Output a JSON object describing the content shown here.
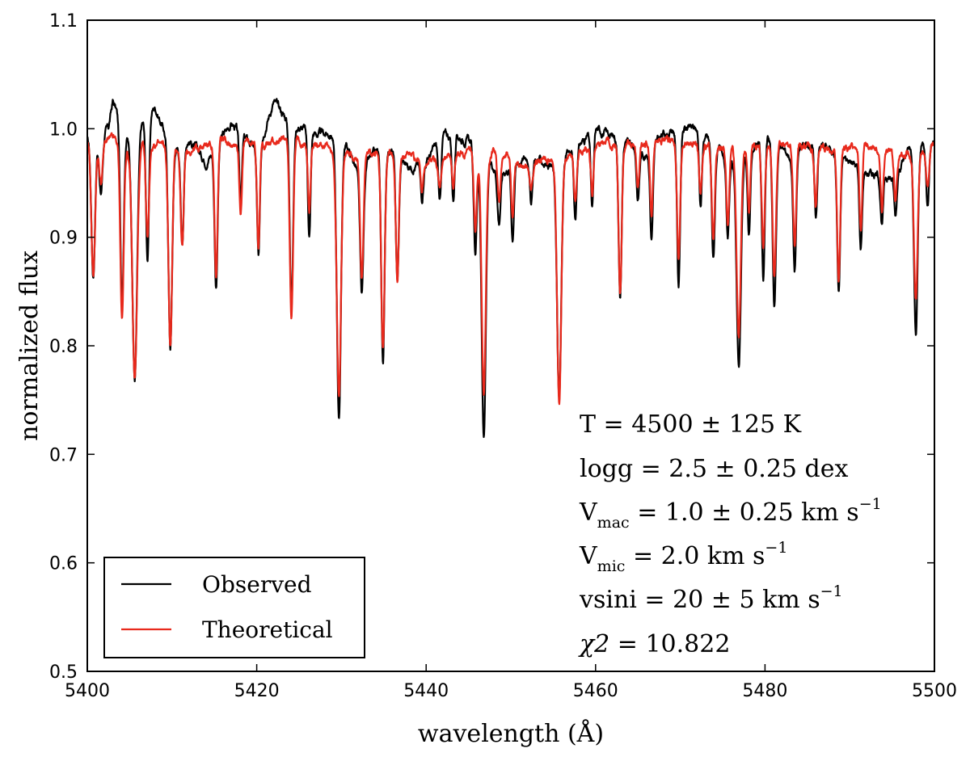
{
  "chart_data": {
    "type": "line",
    "title": "",
    "xlabel": "wavelength (Å)",
    "ylabel": "normalized flux",
    "xlim": [
      5400,
      5500
    ],
    "ylim": [
      0.5,
      1.1
    ],
    "xticks": [
      "5400",
      "5420",
      "5440",
      "5460",
      "5480",
      "5500"
    ],
    "yticks": [
      "0.5",
      "0.6",
      "0.7",
      "0.8",
      "0.9",
      "1.0",
      "1.1"
    ],
    "grid": false,
    "legend_position": "lower-left",
    "series": [
      {
        "name": "Observed",
        "color": "#000000",
        "continuum": [
          [
            5400,
            0.99
          ],
          [
            5402.5,
            1.0
          ],
          [
            5403,
            1.025
          ],
          [
            5405,
            0.99
          ],
          [
            5408,
            1.02
          ],
          [
            5410,
            0.98
          ],
          [
            5412,
            0.99
          ],
          [
            5414,
            0.97
          ],
          [
            5417,
            1.005
          ],
          [
            5420,
            0.98
          ],
          [
            5422,
            1.025
          ],
          [
            5424,
            1.005
          ],
          [
            5427,
            0.995
          ],
          [
            5430,
            0.995
          ],
          [
            5432,
            0.96
          ],
          [
            5435,
            0.985
          ],
          [
            5438,
            0.965
          ],
          [
            5440,
            0.97
          ],
          [
            5442,
            0.995
          ],
          [
            5445,
            0.99
          ],
          [
            5447,
            0.97
          ],
          [
            5449,
            0.96
          ],
          [
            5452,
            0.975
          ],
          [
            5455,
            0.965
          ],
          [
            5458,
            0.985
          ],
          [
            5460,
            1.0
          ],
          [
            5463,
            0.99
          ],
          [
            5466,
            0.975
          ],
          [
            5468,
            0.995
          ],
          [
            5470,
            1.0
          ],
          [
            5472,
            1.0
          ],
          [
            5474,
            0.985
          ],
          [
            5476,
            0.965
          ],
          [
            5478,
            0.975
          ],
          [
            5480,
            0.995
          ],
          [
            5483,
            0.975
          ],
          [
            5485,
            0.985
          ],
          [
            5487,
            0.985
          ],
          [
            5489,
            0.975
          ],
          [
            5492,
            0.96
          ],
          [
            5495,
            0.955
          ],
          [
            5497,
            0.98
          ],
          [
            5500,
            0.99
          ]
        ],
        "lines": [
          [
            5400.7,
            0.865,
            0.22
          ],
          [
            5401.6,
            0.94,
            0.2
          ],
          [
            5404.1,
            0.84,
            0.2
          ],
          [
            5405.6,
            0.77,
            0.28
          ],
          [
            5407.1,
            0.88,
            0.18
          ],
          [
            5409.8,
            0.8,
            0.22
          ],
          [
            5411.2,
            0.895,
            0.18
          ],
          [
            5415.2,
            0.855,
            0.18
          ],
          [
            5418.1,
            0.935,
            0.16
          ],
          [
            5420.2,
            0.88,
            0.16
          ],
          [
            5424.1,
            0.84,
            0.2
          ],
          [
            5426.2,
            0.9,
            0.16
          ],
          [
            5429.7,
            0.735,
            0.25
          ],
          [
            5432.4,
            0.845,
            0.2
          ],
          [
            5434.9,
            0.785,
            0.2
          ],
          [
            5436.6,
            0.86,
            0.18
          ],
          [
            5439.5,
            0.935,
            0.16
          ],
          [
            5441.6,
            0.93,
            0.16
          ],
          [
            5443.2,
            0.935,
            0.16
          ],
          [
            5445.8,
            0.885,
            0.18
          ],
          [
            5446.8,
            0.715,
            0.25
          ],
          [
            5448.6,
            0.915,
            0.18
          ],
          [
            5450.2,
            0.9,
            0.16
          ],
          [
            5452.4,
            0.93,
            0.16
          ],
          [
            5455.7,
            0.75,
            0.25
          ],
          [
            5457.6,
            0.915,
            0.16
          ],
          [
            5459.6,
            0.925,
            0.16
          ],
          [
            5462.9,
            0.845,
            0.18
          ],
          [
            5465.0,
            0.935,
            0.16
          ],
          [
            5466.6,
            0.9,
            0.16
          ],
          [
            5469.8,
            0.855,
            0.18
          ],
          [
            5472.4,
            0.93,
            0.16
          ],
          [
            5473.9,
            0.88,
            0.18
          ],
          [
            5475.6,
            0.895,
            0.16
          ],
          [
            5476.9,
            0.78,
            0.25
          ],
          [
            5478.1,
            0.9,
            0.16
          ],
          [
            5479.8,
            0.86,
            0.18
          ],
          [
            5481.1,
            0.835,
            0.2
          ],
          [
            5483.5,
            0.87,
            0.18
          ],
          [
            5486.0,
            0.92,
            0.16
          ],
          [
            5488.7,
            0.85,
            0.18
          ],
          [
            5491.3,
            0.89,
            0.16
          ],
          [
            5493.8,
            0.91,
            0.16
          ],
          [
            5495.4,
            0.92,
            0.16
          ],
          [
            5497.8,
            0.81,
            0.22
          ],
          [
            5499.2,
            0.93,
            0.16
          ]
        ]
      },
      {
        "name": "Theoretical",
        "color": "#e8291c",
        "continuum": [
          [
            5400,
            0.985
          ],
          [
            5403,
            0.99
          ],
          [
            5405,
            0.98
          ],
          [
            5408,
            0.985
          ],
          [
            5412,
            0.98
          ],
          [
            5416,
            0.99
          ],
          [
            5420,
            0.985
          ],
          [
            5424,
            0.99
          ],
          [
            5428,
            0.985
          ],
          [
            5432,
            0.975
          ],
          [
            5436,
            0.98
          ],
          [
            5440,
            0.97
          ],
          [
            5444,
            0.975
          ],
          [
            5448,
            0.98
          ],
          [
            5452,
            0.965
          ],
          [
            5456,
            0.975
          ],
          [
            5460,
            0.985
          ],
          [
            5464,
            0.985
          ],
          [
            5468,
            0.99
          ],
          [
            5472,
            0.985
          ],
          [
            5476,
            0.98
          ],
          [
            5480,
            0.985
          ],
          [
            5484,
            0.985
          ],
          [
            5488,
            0.98
          ],
          [
            5492,
            0.985
          ],
          [
            5496,
            0.975
          ],
          [
            5500,
            0.985
          ]
        ],
        "lines": [
          [
            5400.7,
            0.865,
            0.22
          ],
          [
            5401.6,
            0.95,
            0.2
          ],
          [
            5404.1,
            0.825,
            0.2
          ],
          [
            5405.6,
            0.77,
            0.28
          ],
          [
            5407.1,
            0.9,
            0.18
          ],
          [
            5409.8,
            0.8,
            0.22
          ],
          [
            5411.2,
            0.89,
            0.18
          ],
          [
            5415.2,
            0.86,
            0.18
          ],
          [
            5418.1,
            0.925,
            0.16
          ],
          [
            5420.2,
            0.895,
            0.16
          ],
          [
            5424.1,
            0.83,
            0.2
          ],
          [
            5426.2,
            0.925,
            0.16
          ],
          [
            5429.7,
            0.75,
            0.25
          ],
          [
            5432.4,
            0.86,
            0.2
          ],
          [
            5434.9,
            0.795,
            0.2
          ],
          [
            5436.6,
            0.865,
            0.18
          ],
          [
            5439.5,
            0.945,
            0.16
          ],
          [
            5441.6,
            0.945,
            0.16
          ],
          [
            5443.2,
            0.945,
            0.16
          ],
          [
            5445.8,
            0.9,
            0.18
          ],
          [
            5446.8,
            0.755,
            0.25
          ],
          [
            5448.6,
            0.93,
            0.18
          ],
          [
            5450.2,
            0.92,
            0.16
          ],
          [
            5452.4,
            0.945,
            0.16
          ],
          [
            5455.7,
            0.748,
            0.25
          ],
          [
            5457.6,
            0.935,
            0.16
          ],
          [
            5459.6,
            0.94,
            0.16
          ],
          [
            5462.9,
            0.845,
            0.18
          ],
          [
            5465.0,
            0.945,
            0.16
          ],
          [
            5466.6,
            0.92,
            0.16
          ],
          [
            5469.8,
            0.875,
            0.18
          ],
          [
            5472.4,
            0.945,
            0.16
          ],
          [
            5473.9,
            0.9,
            0.18
          ],
          [
            5475.6,
            0.91,
            0.16
          ],
          [
            5476.9,
            0.81,
            0.25
          ],
          [
            5478.1,
            0.92,
            0.16
          ],
          [
            5479.8,
            0.89,
            0.18
          ],
          [
            5481.1,
            0.86,
            0.2
          ],
          [
            5483.5,
            0.89,
            0.18
          ],
          [
            5486.0,
            0.93,
            0.16
          ],
          [
            5488.7,
            0.86,
            0.18
          ],
          [
            5491.3,
            0.905,
            0.16
          ],
          [
            5493.8,
            0.925,
            0.16
          ],
          [
            5495.4,
            0.935,
            0.16
          ],
          [
            5497.8,
            0.84,
            0.22
          ],
          [
            5499.2,
            0.95,
            0.16
          ]
        ]
      }
    ],
    "annotations": {
      "teff": {
        "base": "T",
        "text": " = 4500 ± 125 K"
      },
      "logg": {
        "base": "logg",
        "text": " = 2.5 ± 0.25 dex"
      },
      "vmac": {
        "base": "V",
        "sub": "mac",
        "text": " = 1.0 ± 0.25 km s",
        "sup": "−1"
      },
      "vmic": {
        "base": "V",
        "sub": "mic",
        "text": " = 2.0 km s",
        "sup": "−1"
      },
      "vsini": {
        "base": "vsini",
        "text": " = 20 ± 5 km s",
        "sup": "−1"
      },
      "chi2": {
        "base": "χ2",
        "text": " = 10.822"
      }
    }
  }
}
